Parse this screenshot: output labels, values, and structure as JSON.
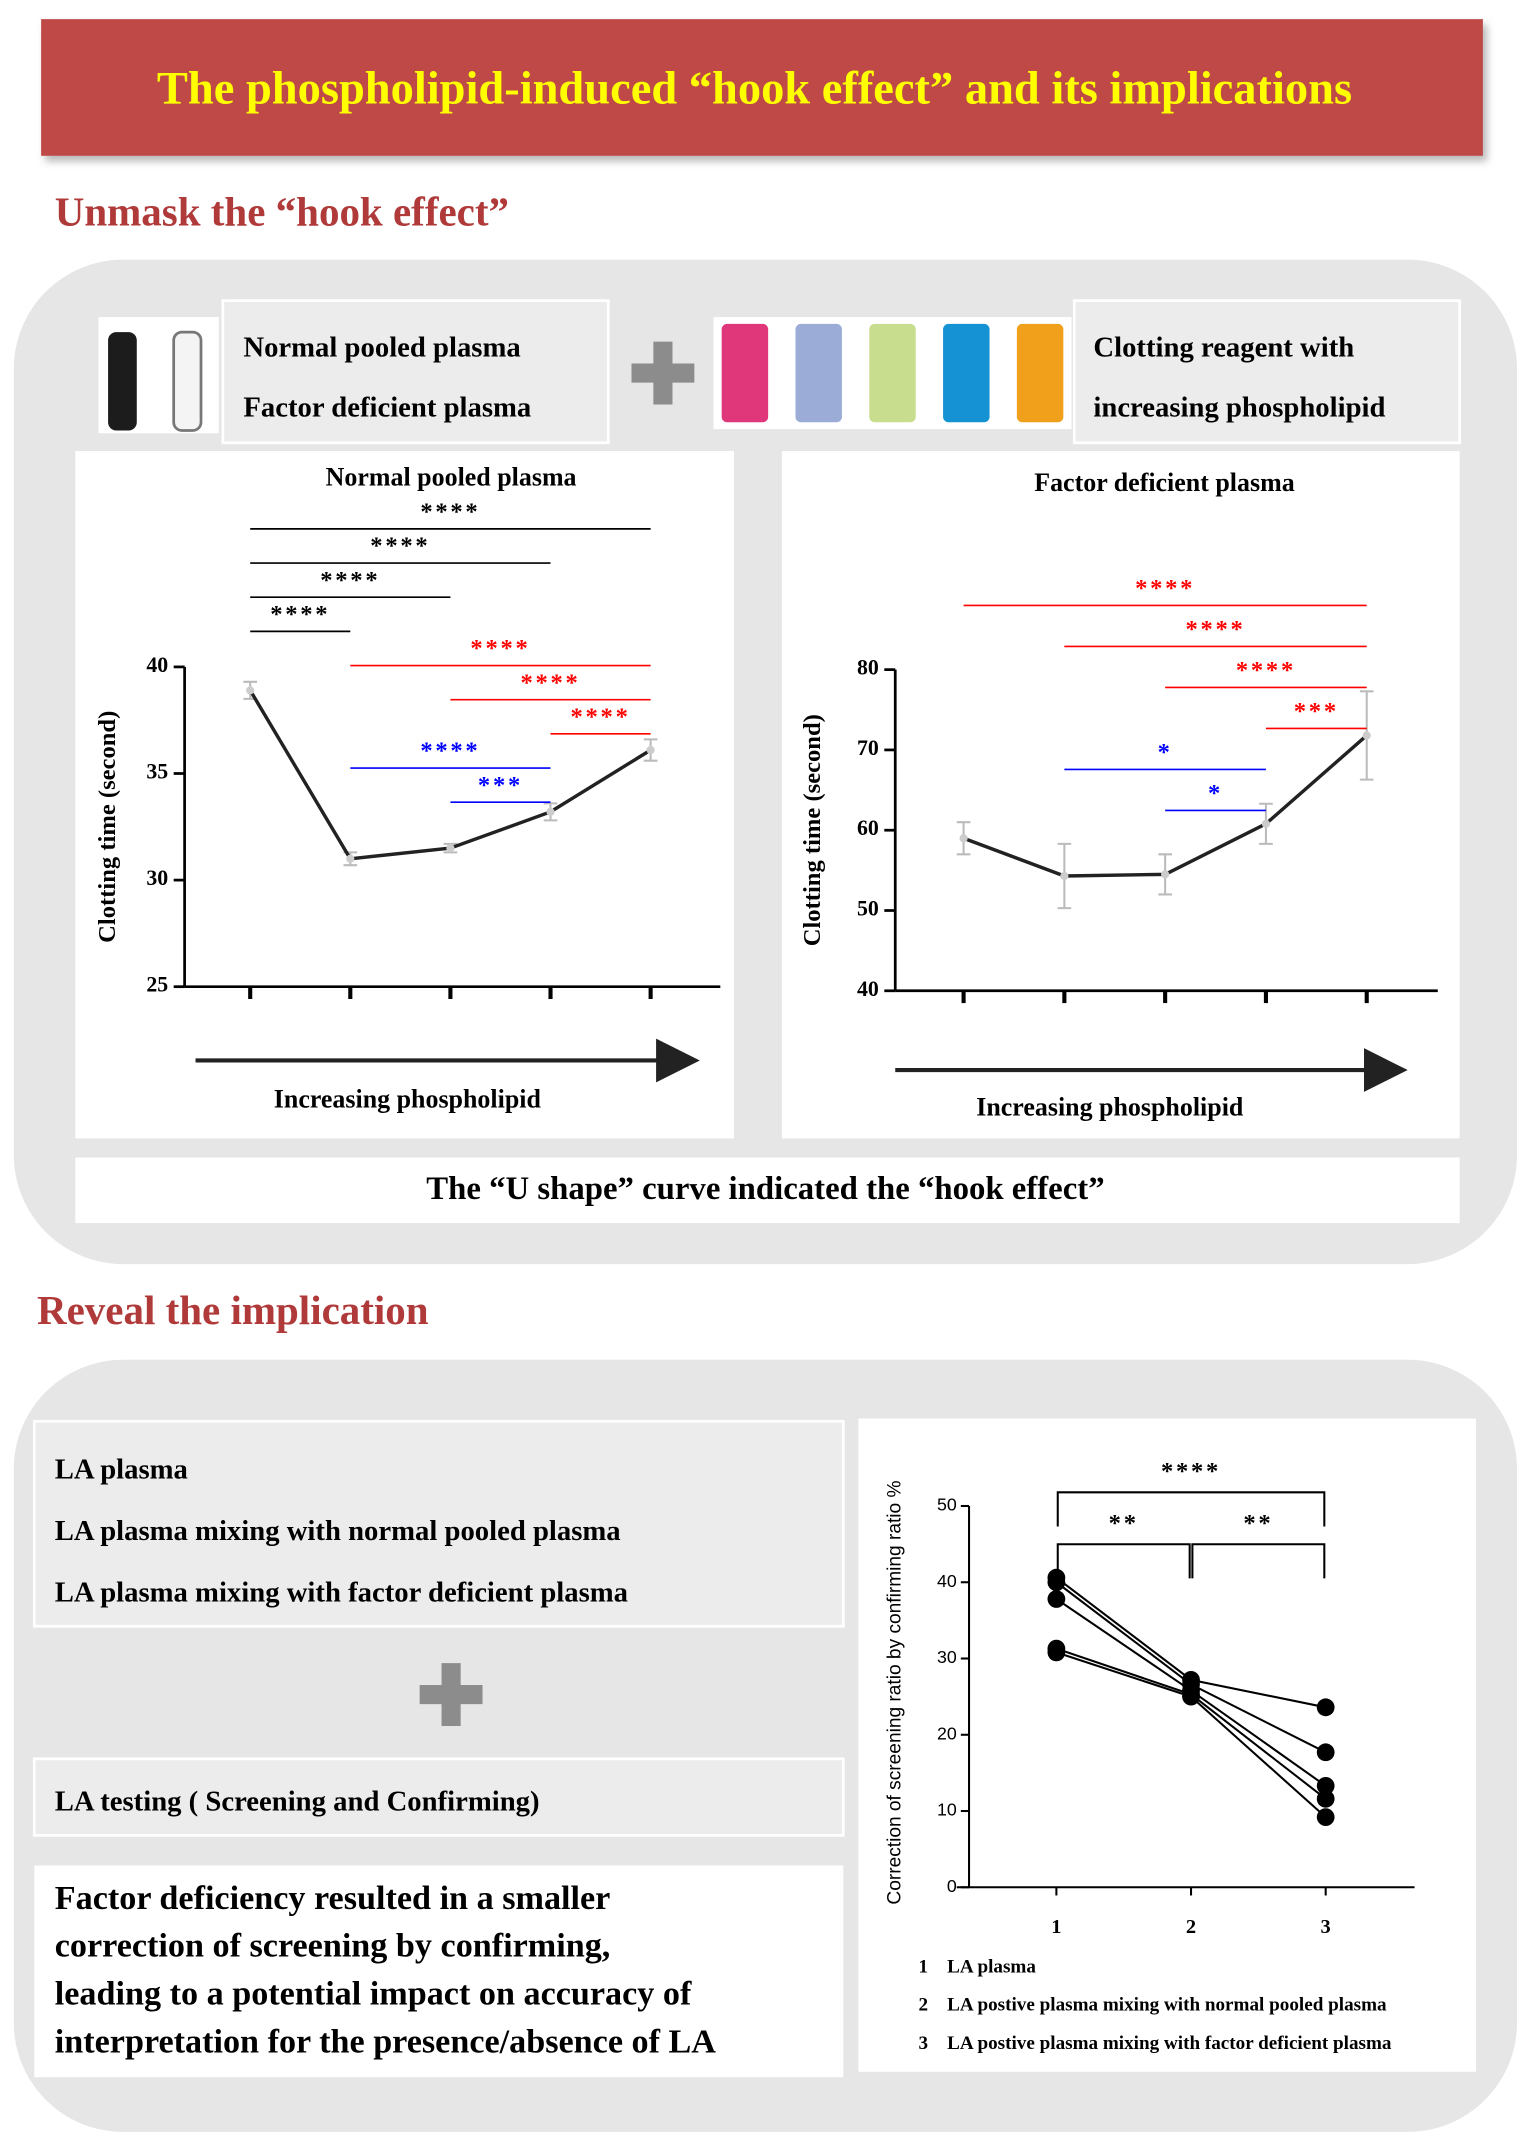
{
  "header": {
    "title": "The phospholipid-induced “hook effect”  and its implications"
  },
  "section1": {
    "heading": "Unmask the “hook effect”",
    "samples": [
      "Normal pooled plasma",
      "Factor deficient plasma"
    ],
    "reagent": [
      "Clotting reagent with",
      "increasing phospholipid"
    ],
    "caption": "The  “U shape” curve  indicated the “hook effect”"
  },
  "section2": {
    "heading": "Reveal the implication",
    "samples": [
      "LA plasma",
      "LA plasma mixing with normal pooled plasma",
      "LA  plasma mixing with factor deficient plasma"
    ],
    "testing": "LA testing ( Screening and Confirming)",
    "conclusion": [
      "Factor deficiency resulted in a smaller",
      "correction of screening by confirming,",
      "leading to a potential impact on accuracy of",
      "interpretation for the presence/absence of LA"
    ]
  },
  "chart_data": [
    {
      "type": "line",
      "title": "Normal pooled plasma",
      "x_label": "Increasing phospholipid",
      "y_label": "Clotting time (second)",
      "categories": [
        null,
        null,
        null,
        null,
        null
      ],
      "values": [
        38.9,
        31.0,
        31.5,
        33.2,
        36.1
      ],
      "errors": [
        0.4,
        0.3,
        0.2,
        0.4,
        0.5
      ],
      "color": "#222222",
      "ylim": [
        25,
        40
      ],
      "yticks": [
        25,
        30,
        35,
        40
      ],
      "comparisons": [
        {
          "from": 0,
          "to": 4,
          "label": "****",
          "color": "#000000"
        },
        {
          "from": 0,
          "to": 3,
          "label": "****",
          "color": "#000000"
        },
        {
          "from": 0,
          "to": 2,
          "label": "****",
          "color": "#000000"
        },
        {
          "from": 0,
          "to": 1,
          "label": "****",
          "color": "#000000"
        },
        {
          "from": 1,
          "to": 4,
          "label": "****",
          "color": "#ff0000"
        },
        {
          "from": 2,
          "to": 4,
          "label": "****",
          "color": "#ff0000"
        },
        {
          "from": 3,
          "to": 4,
          "label": "****",
          "color": "#ff0000"
        },
        {
          "from": 1,
          "to": 3,
          "label": "****",
          "color": "#0000ff"
        },
        {
          "from": 2,
          "to": 3,
          "label": "***",
          "color": "#0000ff"
        }
      ]
    },
    {
      "type": "line",
      "title": "Factor deficient plasma",
      "x_label": "Increasing phospholipid",
      "y_label": "Clotting time (second)",
      "categories": [
        null,
        null,
        null,
        null,
        null
      ],
      "values": [
        59.0,
        54.3,
        54.5,
        60.8,
        71.8
      ],
      "errors": [
        2.0,
        4.0,
        2.5,
        2.5,
        5.5
      ],
      "color": "#222222",
      "ylim": [
        40,
        80
      ],
      "yticks": [
        40,
        50,
        60,
        70,
        80
      ],
      "comparisons": [
        {
          "from": 0,
          "to": 4,
          "label": "****",
          "color": "#ff0000"
        },
        {
          "from": 1,
          "to": 4,
          "label": "****",
          "color": "#ff0000"
        },
        {
          "from": 2,
          "to": 4,
          "label": "****",
          "color": "#ff0000"
        },
        {
          "from": 3,
          "to": 4,
          "label": "***",
          "color": "#ff0000"
        },
        {
          "from": 1,
          "to": 3,
          "label": "*",
          "color": "#0000ff"
        },
        {
          "from": 2,
          "to": 3,
          "label": "*",
          "color": "#0000ff"
        }
      ]
    },
    {
      "type": "paired",
      "y_label": "Correction of screening ratio by confirming ratio %",
      "x": [
        1,
        2,
        3
      ],
      "xlim": [
        0.26,
        3.66
      ],
      "xticks": [
        1,
        2,
        3
      ],
      "ylim": [
        0,
        50
      ],
      "yticks": [
        0,
        10,
        20,
        30,
        40,
        50
      ],
      "series": [
        {
          "color": "#000000",
          "values": [
            40.6,
            27.2,
            23.6
          ]
        },
        {
          "color": "#000000",
          "values": [
            40.0,
            26.6,
            17.7
          ]
        },
        {
          "color": "#000000",
          "values": [
            37.8,
            25.8,
            13.3
          ]
        },
        {
          "color": "#000000",
          "values": [
            31.3,
            25.3,
            11.6
          ]
        },
        {
          "color": "#000000",
          "values": [
            30.8,
            25.0,
            9.2
          ]
        }
      ],
      "comparisons": [
        {
          "from": 1,
          "to": 3,
          "label": "****",
          "color": "#000000"
        },
        {
          "from": 1,
          "to": 2,
          "label": "**",
          "color": "#000000"
        },
        {
          "from": 2,
          "to": 3,
          "label": "**",
          "color": "#000000"
        }
      ],
      "notes": [
        {
          "key": 1,
          "text": "LA plasma"
        },
        {
          "key": 2,
          "text": "LA postive plasma mixing with normal pooled plasma"
        },
        {
          "key": 3,
          "text": "LA postive plasma mixing with factor deficient plasma"
        }
      ]
    }
  ]
}
